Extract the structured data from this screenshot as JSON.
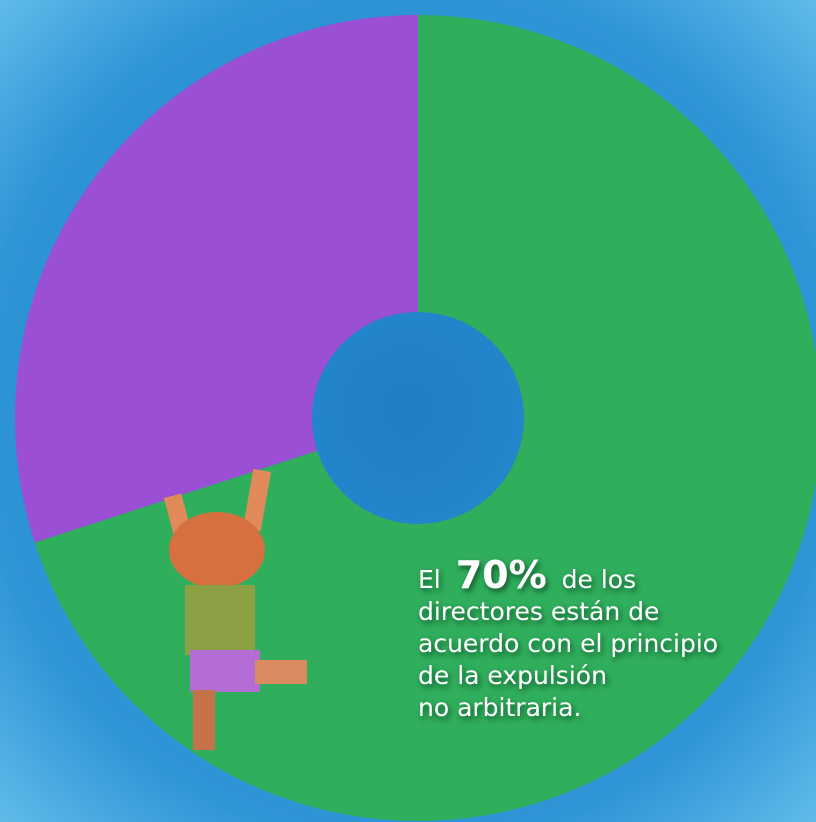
{
  "chart_data": {
    "type": "pie",
    "donut": true,
    "categories": [
      null,
      null
    ],
    "values": [
      70,
      30
    ],
    "value_labels": [
      "70%",
      null
    ],
    "colors": [
      "#2fae5c",
      "#9a4fd4"
    ],
    "annotation": {
      "lead": "El",
      "lines": [
        "de los",
        "directores están de",
        "acuerdo con el principio",
        "de la expulsión",
        "no arbitraria."
      ]
    }
  }
}
